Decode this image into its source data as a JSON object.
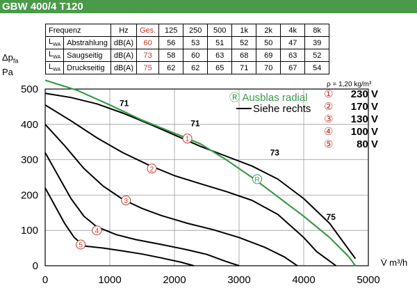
{
  "header": {
    "title": "GBW 400/4 T120"
  },
  "table": {
    "headers": [
      "Frequenz",
      "Hz",
      "Ges.",
      "125",
      "250",
      "500",
      "1k",
      "2k",
      "4k",
      "8k"
    ],
    "rows": [
      {
        "lw": "L",
        "lw_sub": "WA",
        "name": "Abstrahlung",
        "unit": "dB(A)",
        "ges": "60",
        "values": [
          "56",
          "53",
          "51",
          "52",
          "50",
          "47",
          "39"
        ]
      },
      {
        "lw": "L",
        "lw_sub": "WA",
        "name": "Saugseitig",
        "unit": "dB(A)",
        "ges": "73",
        "values": [
          "58",
          "60",
          "63",
          "68",
          "69",
          "63",
          "52"
        ]
      },
      {
        "lw": "L",
        "lw_sub": "WA",
        "name": "Druckseitig",
        "unit": "dB(A)",
        "ges": "75",
        "values": [
          "62",
          "62",
          "65",
          "71",
          "70",
          "67",
          "54"
        ]
      }
    ]
  },
  "colors": {
    "accent": "#4a9a4a",
    "red": "#c0392b",
    "green": "#3a9a4a"
  },
  "chart_data": {
    "type": "line",
    "title": "",
    "xlabel": "V̇ m³/h",
    "ylabel_main": "Δp",
    "ylabel_sub": "fa",
    "ylabel_unit": "Pa",
    "xlim": [
      0,
      5000
    ],
    "ylim": [
      0,
      500
    ],
    "xticks": [
      0,
      1000,
      2000,
      3000,
      4000,
      5000
    ],
    "yticks": [
      0,
      100,
      200,
      300,
      400,
      500
    ],
    "density_note": "ρ = 1,20 kg/m³",
    "legend": [
      {
        "symbol": "Ⓡ",
        "text": "Ausblas radial",
        "color": "#3a9a4a"
      },
      {
        "symbol": "—",
        "text": "Siehe rechts",
        "color": "#000000"
      }
    ],
    "speeds": [
      {
        "symbol": "①",
        "label": "230 V"
      },
      {
        "symbol": "②",
        "label": "170 V"
      },
      {
        "symbol": "③",
        "label": "130 V"
      },
      {
        "symbol": "④",
        "label": "100 V"
      },
      {
        "symbol": "⑤",
        "label": "80 V"
      }
    ],
    "series": [
      {
        "name": "230 V",
        "marker": "①",
        "marker_at": [
          2200,
          360
        ],
        "points": [
          [
            0,
            488
          ],
          [
            400,
            476
          ],
          [
            800,
            458
          ],
          [
            1200,
            432
          ],
          [
            1600,
            402
          ],
          [
            2000,
            370
          ],
          [
            2400,
            338
          ],
          [
            2800,
            310
          ],
          [
            3200,
            282
          ],
          [
            3600,
            245
          ],
          [
            4000,
            190
          ],
          [
            4400,
            120
          ],
          [
            4800,
            20
          ]
        ]
      },
      {
        "name": "170 V",
        "marker": "②",
        "marker_at": [
          1650,
          275
        ],
        "points": [
          [
            0,
            455
          ],
          [
            400,
            410
          ],
          [
            800,
            362
          ],
          [
            1200,
            320
          ],
          [
            1600,
            285
          ],
          [
            2000,
            255
          ],
          [
            2400,
            232
          ],
          [
            2800,
            210
          ],
          [
            3200,
            185
          ],
          [
            3600,
            145
          ],
          [
            4000,
            80
          ],
          [
            4200,
            40
          ],
          [
            4500,
            0
          ]
        ]
      },
      {
        "name": "130 V",
        "marker": "③",
        "marker_at": [
          1250,
          185
        ],
        "points": [
          [
            0,
            400
          ],
          [
            300,
            340
          ],
          [
            600,
            275
          ],
          [
            900,
            225
          ],
          [
            1200,
            188
          ],
          [
            1500,
            162
          ],
          [
            1800,
            142
          ],
          [
            2200,
            120
          ],
          [
            2600,
            102
          ],
          [
            3000,
            80
          ],
          [
            3400,
            52
          ],
          [
            3700,
            25
          ],
          [
            3900,
            0
          ]
        ]
      },
      {
        "name": "100 V",
        "marker": "④",
        "marker_at": [
          800,
          100
        ],
        "points": [
          [
            0,
            320
          ],
          [
            200,
            255
          ],
          [
            400,
            190
          ],
          [
            600,
            140
          ],
          [
            800,
            110
          ],
          [
            1100,
            88
          ],
          [
            1400,
            74
          ],
          [
            1800,
            60
          ],
          [
            2200,
            45
          ],
          [
            2500,
            32
          ],
          [
            2800,
            12
          ],
          [
            3000,
            0
          ]
        ]
      },
      {
        "name": "80 V",
        "marker": "⑤",
        "marker_at": [
          550,
          60
        ],
        "points": [
          [
            0,
            220
          ],
          [
            150,
            170
          ],
          [
            300,
            120
          ],
          [
            450,
            80
          ],
          [
            600,
            56
          ],
          [
            900,
            50
          ],
          [
            1200,
            42
          ],
          [
            1500,
            33
          ],
          [
            1800,
            22
          ],
          [
            2100,
            10
          ],
          [
            2300,
            0
          ]
        ]
      },
      {
        "name": "Ausblas radial",
        "marker": "Ⓡ",
        "marker_at": [
          3280,
          245
        ],
        "color": "#3a9a4a",
        "points": [
          [
            0,
            525
          ],
          [
            500,
            496
          ],
          [
            1000,
            455
          ],
          [
            1500,
            412
          ],
          [
            2000,
            375
          ],
          [
            2400,
            345
          ],
          [
            2800,
            300
          ],
          [
            3200,
            250
          ],
          [
            3600,
            195
          ],
          [
            4000,
            140
          ],
          [
            4400,
            80
          ],
          [
            4700,
            25
          ],
          [
            4800,
            0
          ]
        ]
      }
    ],
    "annotations": [
      {
        "text": "71",
        "at": [
          1150,
          452
        ]
      },
      {
        "text": "71",
        "at": [
          2250,
          395
        ]
      },
      {
        "text": "73",
        "at": [
          3480,
          312
        ]
      },
      {
        "text": "75",
        "at": [
          4350,
          130
        ]
      }
    ]
  }
}
